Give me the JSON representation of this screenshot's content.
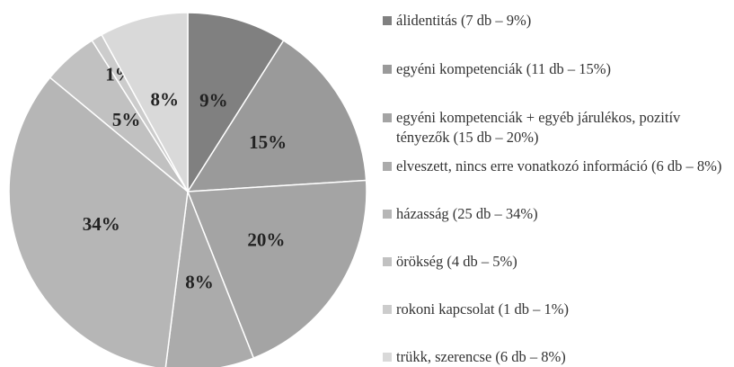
{
  "chart_data": {
    "type": "pie",
    "categories": [
      "álidentitás (7 db – 9%)",
      "egyéni kompetenciák (11 db – 15%)",
      "egyéni kompetenciák + egyéb járulékos, pozitív tényezők (15 db – 20%)",
      "elveszett, nincs erre vonatkozó információ (6 db – 8%)",
      "házasság (25 db – 34%)",
      "örökség (4 db – 5%)",
      "rokoni kapcsolat (1 db – 1%)",
      "trükk, szerencse (6 db – 8%)"
    ],
    "values": [
      9,
      15,
      20,
      8,
      34,
      5,
      1,
      8
    ],
    "value_labels": [
      "9%",
      "15%",
      "20%",
      "8%",
      "34%",
      "5%",
      "1%",
      "8%"
    ],
    "colors": [
      "#808080",
      "#9a9a9a",
      "#a4a4a4",
      "#ababab",
      "#b6b6b6",
      "#c1c1c1",
      "#cccccc",
      "#d9d9d9"
    ]
  }
}
